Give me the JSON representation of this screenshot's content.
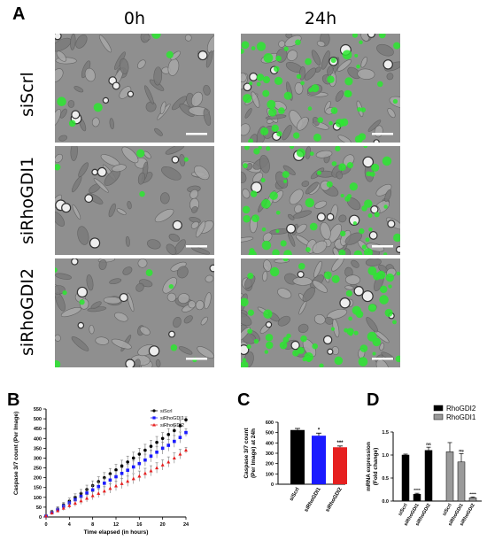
{
  "panel_a": {
    "letter": "A",
    "columns": [
      "0h",
      "24h"
    ],
    "rows": [
      "siScrl",
      "siRhoGDI1",
      "siRhoGDI2"
    ]
  },
  "panel_b": {
    "letter": "B"
  },
  "panel_c": {
    "letter": "C"
  },
  "panel_d": {
    "letter": "D"
  },
  "colors": {
    "siScrl": "#000000",
    "siRhoGDI1": "#1a1aff",
    "siRhoGDI2": "#e62020",
    "RhoGDI2": "#000000",
    "RhoGDI1": "#9a9a9a",
    "fluor": "#2be830",
    "micro_bg": "#8f8f8f"
  },
  "chart_data": [
    {
      "type": "line",
      "panel": "B",
      "xlabel": "Time elapsed (in hours)",
      "ylabel": "Caspase 3/7 count (Per Image)",
      "xlim": [
        0,
        24
      ],
      "ylim": [
        0,
        550
      ],
      "xticks": [
        0,
        4,
        8,
        12,
        16,
        20,
        24
      ],
      "yticks": [
        0,
        50,
        100,
        150,
        200,
        250,
        300,
        350,
        400,
        450,
        500,
        550
      ],
      "legend_position": "top-right",
      "x": [
        0,
        1,
        2,
        3,
        4,
        5,
        6,
        7,
        8,
        9,
        10,
        11,
        12,
        13,
        14,
        15,
        16,
        17,
        18,
        19,
        20,
        21,
        22,
        23,
        24
      ],
      "series": [
        {
          "name": "siScrl",
          "values": [
            5,
            25,
            40,
            60,
            80,
            100,
            120,
            140,
            160,
            180,
            200,
            220,
            240,
            260,
            280,
            300,
            320,
            340,
            360,
            380,
            400,
            420,
            440,
            465,
            495
          ],
          "errors": [
            5,
            10,
            12,
            14,
            16,
            18,
            20,
            22,
            24,
            25,
            26,
            27,
            28,
            29,
            30,
            30,
            30,
            30,
            30,
            30,
            30,
            30,
            30,
            28,
            15
          ]
        },
        {
          "name": "siRhoGDI1",
          "values": [
            5,
            22,
            38,
            55,
            72,
            88,
            105,
            122,
            138,
            155,
            172,
            188,
            205,
            222,
            238,
            255,
            272,
            290,
            310,
            330,
            350,
            365,
            385,
            405,
            430
          ],
          "errors": [
            5,
            10,
            12,
            14,
            16,
            18,
            20,
            22,
            24,
            25,
            26,
            27,
            28,
            29,
            30,
            30,
            30,
            30,
            30,
            30,
            30,
            30,
            30,
            28,
            20
          ]
        },
        {
          "name": "siRhoGDI2",
          "values": [
            5,
            20,
            32,
            45,
            58,
            70,
            82,
            95,
            108,
            120,
            132,
            145,
            158,
            170,
            182,
            195,
            208,
            222,
            235,
            250,
            265,
            280,
            300,
            320,
            340
          ],
          "errors": [
            5,
            8,
            10,
            12,
            14,
            16,
            18,
            19,
            20,
            21,
            22,
            23,
            24,
            25,
            26,
            26,
            26,
            26,
            26,
            26,
            26,
            26,
            26,
            24,
            15
          ]
        }
      ]
    },
    {
      "type": "bar",
      "panel": "C",
      "ylabel": "Caspase 3/7 count\n(Per Image) at 24h",
      "ylim": [
        0,
        600
      ],
      "yticks": [
        0,
        100,
        200,
        300,
        400,
        500,
        600
      ],
      "categories": [
        "siScrl",
        "siRhoGDI1",
        "siRhoGDI2"
      ],
      "values": [
        525,
        470,
        358
      ],
      "errors": [
        15,
        25,
        12
      ],
      "significance": [
        "",
        "*",
        "***"
      ]
    },
    {
      "type": "bar",
      "panel": "D",
      "ylabel": "mRNA expression\n(Fold change)",
      "ylim": [
        0,
        1.5
      ],
      "yticks": [
        0.0,
        0.5,
        1.0,
        1.5
      ],
      "legend_position": "top-right",
      "groups": [
        {
          "name": "RhoGDI2",
          "categories": [
            "siScrl",
            "siRhoGDI1",
            "siRhoGDI2"
          ],
          "values": [
            1.0,
            0.15,
            1.1
          ],
          "errors": [
            0.02,
            0.02,
            0.07
          ],
          "significance": [
            "",
            "****",
            "ns"
          ]
        },
        {
          "name": "RhoGDI1",
          "categories": [
            "siScrl",
            "siRhoGDI1",
            "siRhoGDI2"
          ],
          "values": [
            1.07,
            0.85,
            0.07
          ],
          "errors": [
            0.2,
            0.18,
            0.02
          ],
          "significance": [
            "",
            "ns",
            "****"
          ]
        }
      ]
    }
  ]
}
